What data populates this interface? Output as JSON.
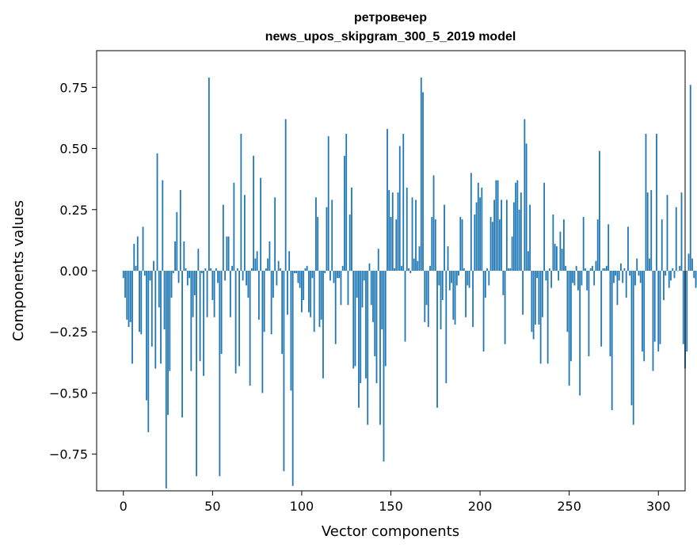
{
  "chart_data": {
    "type": "bar",
    "title": "ретровечер",
    "subtitle": "news_upos_skipgram_300_5_2019 model",
    "xlabel": "Vector components",
    "ylabel": "Components values",
    "xlim": [
      -15,
      315
    ],
    "ylim": [
      -0.9,
      0.9
    ],
    "xticks": [
      0,
      50,
      100,
      150,
      200,
      250,
      300
    ],
    "xtick_labels": [
      "0",
      "50",
      "100",
      "150",
      "200",
      "250",
      "300"
    ],
    "yticks": [
      -0.75,
      -0.5,
      -0.25,
      0,
      0.25,
      0.5,
      0.75
    ],
    "ytick_labels": [
      "−0.75",
      "−0.50",
      "−0.25",
      "0.00",
      "0.25",
      "0.50",
      "0.75"
    ],
    "bar_color": "#1f77b4",
    "grid": false,
    "values": [
      -0.03,
      -0.11,
      -0.2,
      -0.23,
      -0.21,
      -0.38,
      0.11,
      0.02,
      0.14,
      -0.25,
      -0.26,
      0.18,
      -0.02,
      -0.53,
      -0.66,
      -0.04,
      -0.31,
      0.04,
      -0.4,
      0.48,
      -0.15,
      -0.38,
      0.37,
      -0.24,
      -0.89,
      -0.59,
      -0.41,
      -0.11,
      -0.01,
      0.12,
      0.24,
      -0.05,
      0.33,
      -0.6,
      0.12,
      0.01,
      -0.06,
      -0.03,
      -0.41,
      -0.19,
      -0.1,
      -0.84,
      0.09,
      -0.37,
      -0.01,
      -0.43,
      0.01,
      -0.19,
      0.79,
      0.01,
      -0.12,
      -0.19,
      0.01,
      -0.05,
      -0.84,
      -0.34,
      0.27,
      -0.04,
      0.14,
      0.14,
      -0.19,
      0.02,
      0.36,
      -0.42,
      0.01,
      -0.39,
      0.56,
      -0.04,
      0.31,
      -0.06,
      -0.11,
      -0.47,
      0.01,
      0.47,
      0.05,
      0.08,
      -0.2,
      0.38,
      -0.5,
      -0.25,
      0.01,
      0.05,
      0.12,
      -0.26,
      -0.11,
      0.3,
      -0.06,
      0.04,
      0.01,
      -0.34,
      -0.82,
      0.62,
      -0.18,
      0.08,
      -0.49,
      -0.88,
      -0.01,
      -0.01,
      -0.05,
      -0.07,
      -0.17,
      -0.12,
      0.01,
      0.02,
      -0.17,
      -0.19,
      -0.03,
      -0.25,
      0.3,
      0.22,
      -0.23,
      -0.2,
      -0.44,
      -0.01,
      0.26,
      0.55,
      -0.04,
      0.29,
      -0.05,
      -0.3,
      -0.03,
      -0.03,
      -0.14,
      0.02,
      0.47,
      0.56,
      -0.14,
      0.23,
      0.34,
      -0.4,
      -0.39,
      -0.11,
      -0.56,
      -0.46,
      -0.15,
      -0.04,
      -0.44,
      -0.63,
      0.03,
      -0.14,
      -0.21,
      -0.35,
      -0.46,
      0.09,
      -0.63,
      -0.24,
      -0.78,
      -0.39,
      0.58,
      0.33,
      0.22,
      0.32,
      0.01,
      0.21,
      0.32,
      0.51,
      0.02,
      0.56,
      -0.29,
      0.34,
      0.01,
      -0.01,
      0.3,
      0.05,
      0.29,
      0.04,
      0.1,
      0.79,
      0.73,
      -0.21,
      -0.14,
      -0.23,
      0.02,
      0.22,
      0.39,
      0.21,
      -0.56,
      -0.06,
      -0.24,
      -0.12,
      0.27,
      -0.46,
      0.1,
      -0.08,
      -0.05,
      -0.2,
      -0.22,
      -0.06,
      -0.02,
      0.22,
      0.21,
      0.01,
      -0.19,
      -0.06,
      -0.07,
      0.4,
      -0.23,
      0.23,
      0.28,
      0.36,
      0.3,
      0.34,
      -0.33,
      -0.11,
      0.01,
      -0.06,
      0.22,
      0.2,
      0.29,
      0.37,
      0.37,
      0.21,
      0.29,
      -0.1,
      -0.3,
      0.29,
      0.01,
      0.01,
      0.14,
      0.28,
      0.36,
      0.37,
      0.25,
      0.32,
      -0.18,
      0.62,
      0.52,
      0.08,
      0.27,
      -0.25,
      -0.28,
      -0.22,
      -0.03,
      -0.22,
      -0.38,
      -0.19,
      0.36,
      -0.04,
      -0.38,
      0.01,
      -0.07,
      0.23,
      0.11,
      0.1,
      -0.04,
      0.16,
      0.09,
      0.21,
      0.02,
      -0.25,
      -0.47,
      -0.37,
      -0.05,
      -0.06,
      0.02,
      -0.08,
      -0.51,
      -0.06,
      0.22,
      0.01,
      -0.08,
      -0.35,
      0.01,
      0.02,
      -0.06,
      0.04,
      0.21,
      0.49,
      -0.31,
      0.01,
      0.01,
      0.02,
      0.19,
      -0.35,
      -0.57,
      -0.05,
      -0.02,
      -0.14,
      -0.04,
      0.03,
      -0.05,
      0.01,
      -0.11,
      0.18,
      -0.02,
      -0.55,
      -0.63,
      -0.06,
      0.05,
      -0.02,
      -0.05,
      -0.33,
      -0.37,
      0.56,
      0.32,
      0.05,
      0.33,
      -0.41,
      -0.29,
      0.56,
      -0.33,
      -0.3,
      0.21,
      -0.12,
      -0.02,
      0.31,
      -0.07,
      -0.04,
      0.01,
      -0.03,
      0.26,
      0.0,
      0.02,
      0.32,
      -0.3,
      -0.4,
      -0.33,
      0.07,
      0.76,
      0.05,
      -0.03,
      -0.07,
      -0.06
    ]
  }
}
